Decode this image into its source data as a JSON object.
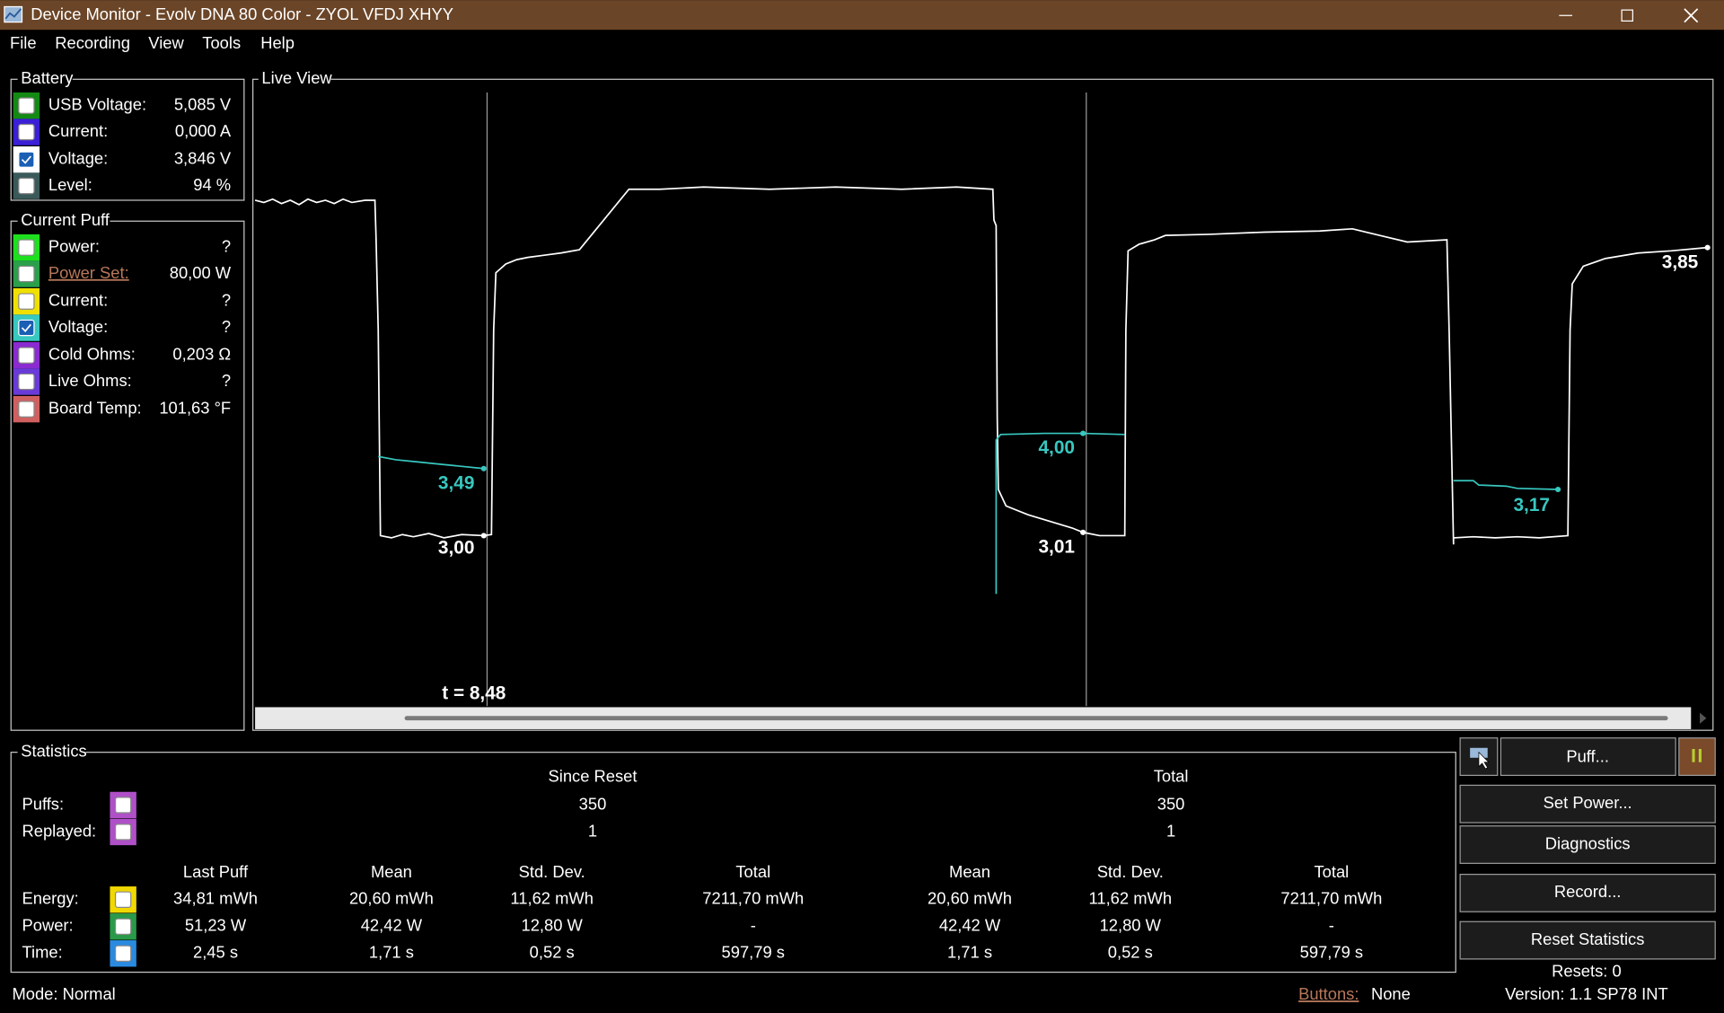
{
  "window": {
    "title": "Device Monitor - Evolv DNA 80 Color - ZYOL VFDJ XHYY"
  },
  "menu": [
    "File",
    "Recording",
    "View",
    "Tools",
    "Help"
  ],
  "battery": {
    "title": "Battery",
    "rows": [
      {
        "label": "USB Voltage:",
        "value": "5,085 V",
        "color": "#138a13",
        "checked": false
      },
      {
        "label": "Current:",
        "value": "0,000 A",
        "color": "#3a1fd6",
        "checked": false
      },
      {
        "label": "Voltage:",
        "value": "3,846 V",
        "color": "#ffffff",
        "checked": true
      },
      {
        "label": "Level:",
        "value": "94 %",
        "color": "#3a5a5a",
        "checked": false
      }
    ]
  },
  "current_puff": {
    "title": "Current Puff",
    "rows": [
      {
        "label": "Power:",
        "value": "?",
        "color": "#1ee01e",
        "checked": false
      },
      {
        "label": "Power Set:",
        "value": "80,00 W",
        "color": "#2aa04a",
        "checked": false,
        "link": true
      },
      {
        "label": "Current:",
        "value": "?",
        "color": "#f0e000",
        "checked": false
      },
      {
        "label": "Voltage:",
        "value": "?",
        "color": "#38c8c0",
        "checked": true
      },
      {
        "label": "Cold Ohms:",
        "value": "0,203 Ω",
        "color": "#8a2ad0",
        "checked": false
      },
      {
        "label": "Live Ohms:",
        "value": "?",
        "color": "#6a3ad8",
        "checked": false
      },
      {
        "label": "Board Temp:",
        "value": "101,63 °F",
        "color": "#d06060",
        "checked": false
      }
    ]
  },
  "live_view": {
    "title": "Live View",
    "cursor_label": "t = 8,48",
    "labels": [
      {
        "text": "3,49",
        "color": "#38c8c0"
      },
      {
        "text": "3,00",
        "color": "#ffffff"
      },
      {
        "text": "4,00",
        "color": "#38c8c0"
      },
      {
        "text": "3,01",
        "color": "#ffffff"
      },
      {
        "text": "3,17",
        "color": "#38c8c0"
      },
      {
        "text": "3,85",
        "color": "#ffffff"
      }
    ]
  },
  "statistics": {
    "title": "Statistics",
    "since_reset": "Since Reset",
    "total": "Total",
    "counters": [
      {
        "label": "Puffs:",
        "color": "#b050c8",
        "since_reset": "350",
        "total": "350"
      },
      {
        "label": "Replayed:",
        "color": "#b050c8",
        "since_reset": "1",
        "total": "1"
      }
    ],
    "columns": [
      "Last Puff",
      "Mean",
      "Std. Dev.",
      "Total",
      "Mean",
      "Std. Dev.",
      "Total"
    ],
    "rows": [
      {
        "label": "Energy:",
        "color": "#f0d800",
        "values": [
          "34,81 mWh",
          "20,60 mWh",
          "11,62 mWh",
          "7211,70 mWh",
          "20,60 mWh",
          "11,62 mWh",
          "7211,70 mWh"
        ]
      },
      {
        "label": "Power:",
        "color": "#2a9a4a",
        "values": [
          "51,23 W",
          "42,42 W",
          "12,80 W",
          "-",
          "42,42 W",
          "12,80 W",
          "-"
        ]
      },
      {
        "label": "Time:",
        "color": "#2a8ae0",
        "values": [
          "2,45 s",
          "1,71 s",
          "0,52 s",
          "597,79 s",
          "1,71 s",
          "0,52 s",
          "597,79 s"
        ]
      }
    ]
  },
  "buttons": {
    "puff": "Puff...",
    "list": [
      "Set Power...",
      "Diagnostics",
      "Record...",
      "Reset Statistics"
    ]
  },
  "status": {
    "mode": "Mode: Normal",
    "buttons_label": "Buttons:",
    "buttons_value": "None",
    "resets": "Resets: 0",
    "version": "Version: 1.1 SP78 INT"
  }
}
